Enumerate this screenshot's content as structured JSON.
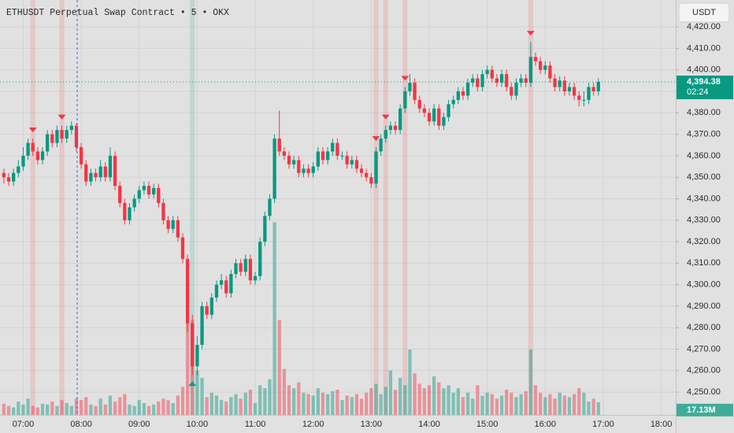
{
  "chart_data": {
    "type": "candlestick",
    "title": "ETHUSDT Perpetual Swap Contract • 5 • OKX",
    "currency": "USDT",
    "price_tag": "4,394.38",
    "countdown": "02:24",
    "volume_tag": "17.13M",
    "up_color": "#089981",
    "down_color": "#f23645",
    "grid": true,
    "xlim": [
      "06:36",
      "18:15"
    ],
    "ylim": [
      4239.4,
      4432.5
    ],
    "volume_lim": [
      0,
      560
    ],
    "xticks": [
      "07:00",
      "08:00",
      "09:00",
      "10:00",
      "11:00",
      "12:00",
      "13:00",
      "14:00",
      "15:00",
      "16:00",
      "17:00",
      "18:00"
    ],
    "yticks": [
      {
        "value": 4250,
        "label": "4,250.00"
      },
      {
        "value": 4260,
        "label": "4,260.00"
      },
      {
        "value": 4270,
        "label": "4,270.00"
      },
      {
        "value": 4280,
        "label": "4,280.00"
      },
      {
        "value": 4290,
        "label": "4,290.00"
      },
      {
        "value": 4300,
        "label": "4,300.00"
      },
      {
        "value": 4310,
        "label": "4,310.00"
      },
      {
        "value": 4320,
        "label": "4,320.00"
      },
      {
        "value": 4330,
        "label": "4,330.00"
      },
      {
        "value": 4340,
        "label": "4,340.00"
      },
      {
        "value": 4350,
        "label": "4,350.00"
      },
      {
        "value": 4360,
        "label": "4,360.00"
      },
      {
        "value": 4370,
        "label": "4,370.00"
      },
      {
        "value": 4380,
        "label": "4,380.00"
      },
      {
        "value": 4390,
        "label": "4,390.00"
      },
      {
        "value": 4400,
        "label": "4,400.00"
      },
      {
        "value": 4410,
        "label": "4,410.00"
      },
      {
        "value": 4420,
        "label": "4,420.00"
      }
    ],
    "sell_signals": [
      "07:10",
      "07:40",
      "13:05",
      "13:15",
      "13:35",
      "15:45"
    ],
    "buy_signals": [
      "09:55"
    ],
    "x": [
      "06:40",
      "06:45",
      "06:50",
      "06:55",
      "07:00",
      "07:05",
      "07:10",
      "07:15",
      "07:20",
      "07:25",
      "07:30",
      "07:35",
      "07:40",
      "07:45",
      "07:50",
      "07:55",
      "08:00",
      "08:05",
      "08:10",
      "08:15",
      "08:20",
      "08:25",
      "08:30",
      "08:35",
      "08:40",
      "08:45",
      "08:50",
      "08:55",
      "09:00",
      "09:05",
      "09:10",
      "09:15",
      "09:20",
      "09:25",
      "09:30",
      "09:35",
      "09:40",
      "09:45",
      "09:50",
      "09:55",
      "10:00",
      "10:05",
      "10:10",
      "10:15",
      "10:20",
      "10:25",
      "10:30",
      "10:35",
      "10:40",
      "10:45",
      "10:50",
      "10:55",
      "11:00",
      "11:05",
      "11:10",
      "11:15",
      "11:20",
      "11:25",
      "11:30",
      "11:35",
      "11:40",
      "11:45",
      "11:50",
      "11:55",
      "12:00",
      "12:05",
      "12:10",
      "12:15",
      "12:20",
      "12:25",
      "12:30",
      "12:35",
      "12:40",
      "12:45",
      "12:50",
      "12:55",
      "13:00",
      "13:05",
      "13:10",
      "13:15",
      "13:20",
      "13:25",
      "13:30",
      "13:35",
      "13:40",
      "13:45",
      "13:50",
      "13:55",
      "14:00",
      "14:05",
      "14:10",
      "14:15",
      "14:20",
      "14:25",
      "14:30",
      "14:35",
      "14:40",
      "14:45",
      "14:50",
      "14:55",
      "15:00",
      "15:05",
      "15:10",
      "15:15",
      "15:20",
      "15:25",
      "15:30",
      "15:35",
      "15:40",
      "15:45",
      "15:50",
      "15:55",
      "16:00",
      "16:05",
      "16:10",
      "16:15",
      "16:20",
      "16:25",
      "16:30",
      "16:35",
      "16:40",
      "16:45",
      "16:50",
      "16:55"
    ],
    "ohlc": [
      [
        4352,
        4354,
        4347,
        4350
      ],
      [
        4350,
        4352,
        4346,
        4348
      ],
      [
        4348,
        4354,
        4346,
        4352
      ],
      [
        4352,
        4358,
        4350,
        4355
      ],
      [
        4355,
        4364,
        4353,
        4360
      ],
      [
        4360,
        4368,
        4358,
        4366
      ],
      [
        4366,
        4368,
        4360,
        4362
      ],
      [
        4362,
        4364,
        4356,
        4358
      ],
      [
        4358,
        4364,
        4356,
        4362
      ],
      [
        4362,
        4372,
        4360,
        4370
      ],
      [
        4370,
        4372,
        4364,
        4366
      ],
      [
        4366,
        4374,
        4364,
        4372
      ],
      [
        4372,
        4374,
        4366,
        4368
      ],
      [
        4368,
        4374,
        4366,
        4372
      ],
      [
        4372,
        4376,
        4370,
        4374
      ],
      [
        4374,
        4375,
        4362,
        4364
      ],
      [
        4364,
        4366,
        4354,
        4356
      ],
      [
        4356,
        4358,
        4346,
        4348
      ],
      [
        4348,
        4354,
        4346,
        4352
      ],
      [
        4352,
        4354,
        4348,
        4350
      ],
      [
        4350,
        4358,
        4348,
        4355
      ],
      [
        4355,
        4357,
        4348,
        4350
      ],
      [
        4350,
        4364,
        4348,
        4360
      ],
      [
        4360,
        4362,
        4344,
        4346
      ],
      [
        4346,
        4348,
        4336,
        4338
      ],
      [
        4338,
        4340,
        4328,
        4330
      ],
      [
        4330,
        4338,
        4328,
        4336
      ],
      [
        4336,
        4342,
        4334,
        4340
      ],
      [
        4340,
        4346,
        4338,
        4344
      ],
      [
        4344,
        4348,
        4342,
        4346
      ],
      [
        4346,
        4348,
        4340,
        4342
      ],
      [
        4342,
        4347,
        4340,
        4345
      ],
      [
        4345,
        4347,
        4336,
        4338
      ],
      [
        4338,
        4340,
        4328,
        4330
      ],
      [
        4330,
        4332,
        4324,
        4326
      ],
      [
        4326,
        4332,
        4324,
        4330
      ],
      [
        4330,
        4332,
        4320,
        4322
      ],
      [
        4322,
        4324,
        4310,
        4312
      ],
      [
        4312,
        4314,
        4278,
        4282
      ],
      [
        4282,
        4286,
        4258,
        4262
      ],
      [
        4262,
        4276,
        4258,
        4272
      ],
      [
        4272,
        4292,
        4270,
        4290
      ],
      [
        4290,
        4292,
        4284,
        4286
      ],
      [
        4286,
        4296,
        4284,
        4294
      ],
      [
        4294,
        4302,
        4292,
        4300
      ],
      [
        4300,
        4305,
        4298,
        4302
      ],
      [
        4302,
        4304,
        4294,
        4296
      ],
      [
        4296,
        4307,
        4294,
        4305
      ],
      [
        4305,
        4312,
        4303,
        4310
      ],
      [
        4310,
        4312,
        4304,
        4306
      ],
      [
        4306,
        4314,
        4304,
        4312
      ],
      [
        4312,
        4314,
        4300,
        4302
      ],
      [
        4302,
        4306,
        4300,
        4304
      ],
      [
        4304,
        4322,
        4302,
        4320
      ],
      [
        4320,
        4334,
        4318,
        4332
      ],
      [
        4332,
        4342,
        4330,
        4340
      ],
      [
        4340,
        4370,
        4338,
        4368
      ],
      [
        4368,
        4381,
        4360,
        4362
      ],
      [
        4362,
        4364,
        4358,
        4360
      ],
      [
        4360,
        4362,
        4354,
        4356
      ],
      [
        4356,
        4360,
        4354,
        4358
      ],
      [
        4358,
        4360,
        4350,
        4352
      ],
      [
        4352,
        4356,
        4350,
        4354
      ],
      [
        4354,
        4356,
        4350,
        4352
      ],
      [
        4352,
        4357,
        4350,
        4355
      ],
      [
        4355,
        4364,
        4353,
        4362
      ],
      [
        4362,
        4364,
        4356,
        4358
      ],
      [
        4358,
        4364,
        4356,
        4362
      ],
      [
        4362,
        4368,
        4360,
        4366
      ],
      [
        4366,
        4368,
        4358,
        4360
      ],
      [
        4360,
        4362,
        4358,
        4360
      ],
      [
        4360,
        4362,
        4354,
        4356
      ],
      [
        4356,
        4360,
        4354,
        4358
      ],
      [
        4358,
        4360,
        4352,
        4354
      ],
      [
        4354,
        4356,
        4350,
        4352
      ],
      [
        4352,
        4354,
        4348,
        4350
      ],
      [
        4350,
        4352,
        4345,
        4347
      ],
      [
        4347,
        4364,
        4345,
        4362
      ],
      [
        4362,
        4370,
        4360,
        4368
      ],
      [
        4368,
        4374,
        4366,
        4372
      ],
      [
        4372,
        4376,
        4370,
        4374
      ],
      [
        4374,
        4376,
        4370,
        4372
      ],
      [
        4372,
        4384,
        4370,
        4382
      ],
      [
        4382,
        4392,
        4380,
        4390
      ],
      [
        4390,
        4398,
        4388,
        4394
      ],
      [
        4394,
        4396,
        4384,
        4386
      ],
      [
        4386,
        4388,
        4380,
        4382
      ],
      [
        4382,
        4384,
        4378,
        4380
      ],
      [
        4380,
        4382,
        4374,
        4376
      ],
      [
        4376,
        4384,
        4374,
        4382
      ],
      [
        4382,
        4384,
        4372,
        4374
      ],
      [
        4374,
        4380,
        4372,
        4378
      ],
      [
        4378,
        4386,
        4376,
        4384
      ],
      [
        4384,
        4388,
        4382,
        4386
      ],
      [
        4386,
        4392,
        4384,
        4390
      ],
      [
        4390,
        4392,
        4386,
        4388
      ],
      [
        4388,
        4396,
        4386,
        4394
      ],
      [
        4394,
        4398,
        4392,
        4396
      ],
      [
        4396,
        4398,
        4390,
        4392
      ],
      [
        4392,
        4400,
        4390,
        4398
      ],
      [
        4398,
        4402,
        4396,
        4400
      ],
      [
        4400,
        4402,
        4394,
        4396
      ],
      [
        4396,
        4398,
        4392,
        4394
      ],
      [
        4394,
        4400,
        4392,
        4398
      ],
      [
        4398,
        4400,
        4390,
        4392
      ],
      [
        4392,
        4394,
        4386,
        4388
      ],
      [
        4388,
        4396,
        4386,
        4394
      ],
      [
        4394,
        4398,
        4392,
        4396
      ],
      [
        4396,
        4398,
        4392,
        4394
      ],
      [
        4394,
        4413,
        4392,
        4406
      ],
      [
        4406,
        4408,
        4402,
        4404
      ],
      [
        4404,
        4406,
        4398,
        4400
      ],
      [
        4400,
        4404,
        4398,
        4402
      ],
      [
        4402,
        4404,
        4394,
        4396
      ],
      [
        4396,
        4398,
        4390,
        4392
      ],
      [
        4392,
        4397,
        4390,
        4395
      ],
      [
        4395,
        4397,
        4388,
        4390
      ],
      [
        4390,
        4394,
        4388,
        4392
      ],
      [
        4392,
        4394,
        4386,
        4388
      ],
      [
        4388,
        4390,
        4383,
        4386
      ],
      [
        4386,
        4390,
        4383,
        4386
      ],
      [
        4386,
        4394,
        4384,
        4392
      ],
      [
        4392,
        4394,
        4388,
        4390
      ],
      [
        4390,
        4396,
        4388,
        4394.38
      ]
    ],
    "volume": [
      15,
      12,
      10,
      18,
      14,
      22,
      12,
      10,
      15,
      14,
      18,
      12,
      20,
      16,
      12,
      22,
      20,
      24,
      14,
      12,
      22,
      14,
      26,
      18,
      24,
      28,
      14,
      12,
      20,
      16,
      12,
      14,
      18,
      22,
      20,
      16,
      26,
      38,
      170,
      128,
      60,
      50,
      24,
      30,
      26,
      20,
      18,
      24,
      28,
      22,
      30,
      34,
      16,
      40,
      36,
      48,
      260,
      128,
      62,
      40,
      36,
      44,
      30,
      28,
      26,
      36,
      30,
      28,
      32,
      34,
      20,
      26,
      24,
      28,
      22,
      30,
      36,
      42,
      28,
      38,
      60,
      34,
      50,
      40,
      88,
      56,
      42,
      36,
      40,
      52,
      44,
      36,
      40,
      30,
      36,
      24,
      30,
      22,
      40,
      26,
      30,
      28,
      22,
      26,
      34,
      30,
      24,
      28,
      32,
      88,
      40,
      30,
      24,
      28,
      22,
      30,
      26,
      24,
      28,
      36,
      30,
      18,
      22,
      17.13
    ]
  }
}
